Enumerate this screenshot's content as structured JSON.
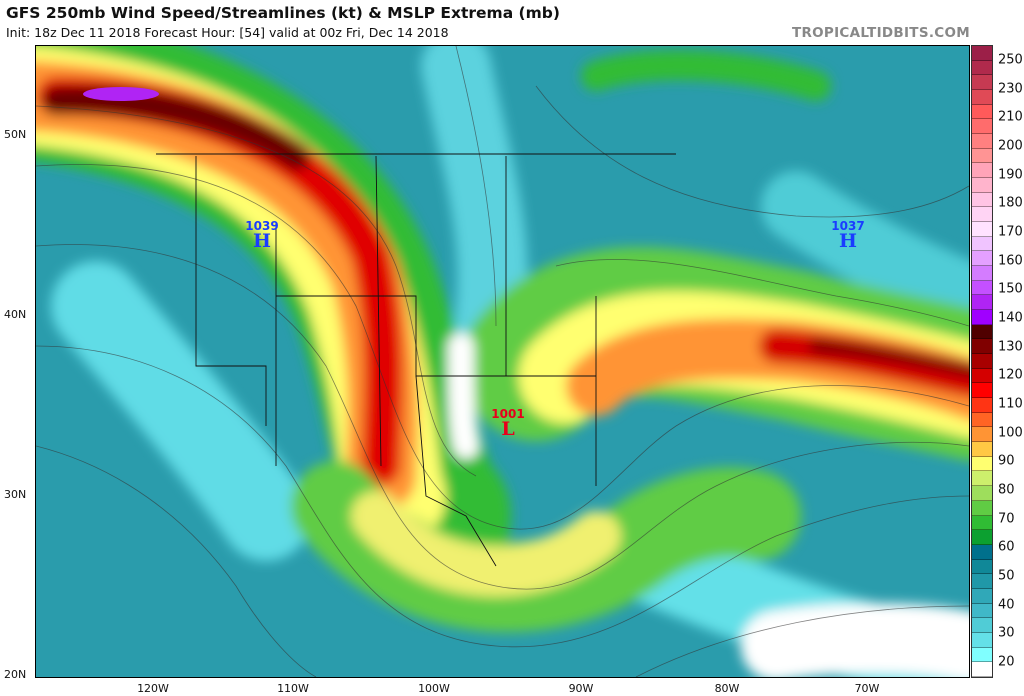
{
  "header": {
    "title": "GFS 250mb Wind Speed/Streamlines (kt) & MSLP Extrema (mb)",
    "subtitle": "Init: 18z Dec 11 2018   Forecast Hour: [54]   valid at 00z Fri, Dec 14 2018",
    "watermark": "TROPICALTIDBITS.COM"
  },
  "map": {
    "lat_labels": [
      "50N",
      "40N",
      "30N",
      "20N"
    ],
    "lon_labels": [
      "120W",
      "110W",
      "100W",
      "90W",
      "80W",
      "70W"
    ],
    "pressure_centers": [
      {
        "type": "H",
        "value": "1039",
        "color": "#1a3cff"
      },
      {
        "type": "H",
        "value": "1037",
        "color": "#1a3cff"
      },
      {
        "type": "L",
        "value": "1001",
        "color": "#e8001c"
      }
    ]
  },
  "colorbar": {
    "units": "kt",
    "labels": [
      "250",
      "230",
      "210",
      "200",
      "190",
      "180",
      "170",
      "160",
      "150",
      "140",
      "130",
      "120",
      "110",
      "100",
      "90",
      "80",
      "70",
      "60",
      "50",
      "40",
      "30",
      "20"
    ],
    "colors_top_to_bottom": [
      "#9c1f48",
      "#b02a4c",
      "#c63a52",
      "#e04a56",
      "#ff5a5a",
      "#ff6c6c",
      "#ff8080",
      "#ff9494",
      "#ffa4b8",
      "#ffb4cc",
      "#ffc4e4",
      "#ffd4f4",
      "#ffe2ff",
      "#f0c4ff",
      "#e4a0ff",
      "#d47cff",
      "#c450ff",
      "#b024f4",
      "#a000ff",
      "#500000",
      "#800000",
      "#a80000",
      "#d40000",
      "#ff0000",
      "#ff3414",
      "#ff6424",
      "#ff9434",
      "#ffc844",
      "#ffff70",
      "#cdef6c",
      "#9ede5c",
      "#60cc44",
      "#30bc34",
      "#0ca030",
      "#00708c",
      "#108898",
      "#2098a8",
      "#30a8b8",
      "#40b8c8",
      "#50ccd6",
      "#64e0e8",
      "#80ffff",
      "#ffffff"
    ]
  }
}
